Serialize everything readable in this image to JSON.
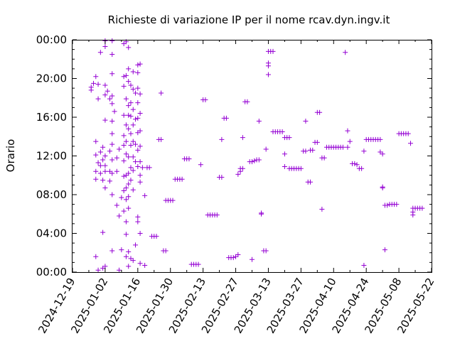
{
  "chart_data": {
    "type": "scatter",
    "title": "Richieste di variazione IP per il nome rcav.dyn.ingv.it",
    "xlabel": "",
    "ylabel": "Orario",
    "x_ticks": [
      "2024-12-19",
      "2025-01-02",
      "2025-01-16",
      "2025-01-30",
      "2025-02-13",
      "2025-02-27",
      "2025-03-13",
      "2025-03-27",
      "2025-04-10",
      "2025-04-24",
      "2025-05-08",
      "2025-05-22"
    ],
    "y_ticks": [
      "00:00",
      "04:00",
      "08:00",
      "12:00",
      "16:00",
      "20:00",
      "00:00"
    ],
    "xlim": [
      "2024-12-19",
      "2025-05-22"
    ],
    "ylim_hours": [
      0,
      24
    ],
    "marker": "+",
    "series_color": "#9400d3",
    "grid": false,
    "points": [
      [
        "2024-12-27",
        19.1
      ],
      [
        "2024-12-27",
        18.8
      ],
      [
        "2024-12-28",
        19.5
      ],
      [
        "2024-12-29",
        20.2
      ],
      [
        "2024-12-29",
        1.6
      ],
      [
        "2024-12-29",
        9.6
      ],
      [
        "2024-12-29",
        10.4
      ],
      [
        "2024-12-29",
        12.1
      ],
      [
        "2024-12-29",
        13.5
      ],
      [
        "2024-12-30",
        11.3
      ],
      [
        "2024-12-30",
        17.9
      ],
      [
        "2024-12-30",
        19.4
      ],
      [
        "2024-12-30",
        0.2
      ],
      [
        "2024-12-31",
        22.7
      ],
      [
        "2024-12-31",
        12.4
      ],
      [
        "2024-12-31",
        11.0
      ],
      [
        "2024-12-31",
        10.2
      ],
      [
        "2025-01-01",
        0.4
      ],
      [
        "2025-01-01",
        11.6
      ],
      [
        "2025-01-01",
        12.9
      ],
      [
        "2025-01-01",
        9.5
      ],
      [
        "2025-01-01",
        4.1
      ],
      [
        "2025-01-02",
        23.3
      ],
      [
        "2025-01-02",
        23.9
      ],
      [
        "2025-01-02",
        19.3
      ],
      [
        "2025-01-02",
        18.3
      ],
      [
        "2025-01-02",
        15.7
      ],
      [
        "2025-01-02",
        12.0
      ],
      [
        "2025-01-02",
        11.0
      ],
      [
        "2025-01-02",
        10.4
      ],
      [
        "2025-01-02",
        8.7
      ],
      [
        "2025-01-02",
        0.6
      ],
      [
        "2025-01-03",
        18.7
      ],
      [
        "2025-01-04",
        17.9
      ],
      [
        "2025-01-04",
        12.5
      ],
      [
        "2025-01-04",
        10.4
      ],
      [
        "2025-01-04",
        9.4
      ],
      [
        "2025-01-05",
        23.9
      ],
      [
        "2025-01-05",
        22.5
      ],
      [
        "2025-01-05",
        20.5
      ],
      [
        "2025-01-05",
        18.2
      ],
      [
        "2025-01-05",
        17.4
      ],
      [
        "2025-01-05",
        15.6
      ],
      [
        "2025-01-05",
        14.3
      ],
      [
        "2025-01-05",
        13.2
      ],
      [
        "2025-01-05",
        11.6
      ],
      [
        "2025-01-05",
        10.2
      ],
      [
        "2025-01-05",
        8.0
      ],
      [
        "2025-01-05",
        2.2
      ],
      [
        "2025-01-06",
        16.6
      ],
      [
        "2025-01-07",
        11.8
      ],
      [
        "2025-01-07",
        10.4
      ],
      [
        "2025-01-07",
        6.9
      ],
      [
        "2025-01-08",
        12.7
      ],
      [
        "2025-01-08",
        5.8
      ],
      [
        "2025-01-08",
        0.2
      ],
      [
        "2025-01-09",
        7.7
      ],
      [
        "2025-01-09",
        2.3
      ],
      [
        "2025-01-10",
        23.6
      ],
      [
        "2025-01-10",
        20.2
      ],
      [
        "2025-01-10",
        19.2
      ],
      [
        "2025-01-10",
        16.2
      ],
      [
        "2025-01-10",
        14.1
      ],
      [
        "2025-01-10",
        13.1
      ],
      [
        "2025-01-10",
        11.5
      ],
      [
        "2025-01-10",
        9.9
      ],
      [
        "2025-01-10",
        8.4
      ],
      [
        "2025-01-10",
        6.3
      ],
      [
        "2025-01-11",
        23.8
      ],
      [
        "2025-01-11",
        20.3
      ],
      [
        "2025-01-11",
        17.9
      ],
      [
        "2025-01-11",
        15.2
      ],
      [
        "2025-01-11",
        13.5
      ],
      [
        "2025-01-11",
        12.2
      ],
      [
        "2025-01-11",
        10.0
      ],
      [
        "2025-01-11",
        8.7
      ],
      [
        "2025-01-11",
        7.5
      ],
      [
        "2025-01-11",
        5.2
      ],
      [
        "2025-01-11",
        3.9
      ],
      [
        "2025-01-11",
        1.6
      ],
      [
        "2025-01-12",
        23.2
      ],
      [
        "2025-01-12",
        21.0
      ],
      [
        "2025-01-12",
        19.7
      ],
      [
        "2025-01-12",
        17.2
      ],
      [
        "2025-01-12",
        16.2
      ],
      [
        "2025-01-12",
        14.8
      ],
      [
        "2025-01-12",
        11.9
      ],
      [
        "2025-01-12",
        10.2
      ],
      [
        "2025-01-12",
        9.1
      ],
      [
        "2025-01-12",
        7.8
      ],
      [
        "2025-01-12",
        6.6
      ],
      [
        "2025-01-12",
        2.1
      ],
      [
        "2025-01-12",
        0.6
      ],
      [
        "2025-01-13",
        19.3
      ],
      [
        "2025-01-13",
        17.5
      ],
      [
        "2025-01-13",
        16.1
      ],
      [
        "2025-01-13",
        14.3
      ],
      [
        "2025-01-13",
        13.1
      ],
      [
        "2025-01-13",
        10.8
      ],
      [
        "2025-01-13",
        9.5
      ],
      [
        "2025-01-13",
        1.4
      ],
      [
        "2025-01-14",
        20.7
      ],
      [
        "2025-01-14",
        18.9
      ],
      [
        "2025-01-14",
        16.8
      ],
      [
        "2025-01-14",
        15.2
      ],
      [
        "2025-01-14",
        13.5
      ],
      [
        "2025-01-14",
        11.9
      ],
      [
        "2025-01-14",
        10.5
      ],
      [
        "2025-01-14",
        8.5
      ],
      [
        "2025-01-14",
        1.2
      ],
      [
        "2025-01-15",
        18.5
      ],
      [
        "2025-01-15",
        15.8
      ],
      [
        "2025-01-15",
        13.2
      ],
      [
        "2025-01-15",
        11.4
      ],
      [
        "2025-01-15",
        2.8
      ],
      [
        "2025-01-16",
        21.4
      ],
      [
        "2025-01-16",
        20.6
      ],
      [
        "2025-01-16",
        19.0
      ],
      [
        "2025-01-16",
        17.5
      ],
      [
        "2025-01-16",
        15.9
      ],
      [
        "2025-01-16",
        14.4
      ],
      [
        "2025-01-16",
        12.6
      ],
      [
        "2025-01-16",
        10.9
      ],
      [
        "2025-01-16",
        5.2
      ],
      [
        "2025-01-16",
        5.7
      ],
      [
        "2025-01-17",
        21.5
      ],
      [
        "2025-01-17",
        18.4
      ],
      [
        "2025-01-17",
        16.4
      ],
      [
        "2025-01-17",
        14.6
      ],
      [
        "2025-01-17",
        13.0
      ],
      [
        "2025-01-17",
        11.4
      ],
      [
        "2025-01-17",
        10.0
      ],
      [
        "2025-01-17",
        9.3
      ],
      [
        "2025-01-17",
        4.0
      ],
      [
        "2025-01-17",
        0.9
      ],
      [
        "2025-01-18",
        10.8
      ],
      [
        "2025-01-19",
        7.9
      ],
      [
        "2025-01-19",
        0.7
      ],
      [
        "2025-01-20",
        10.8
      ],
      [
        "2025-01-21",
        10.8
      ],
      [
        "2025-01-22",
        3.7
      ],
      [
        "2025-01-23",
        3.7
      ],
      [
        "2025-01-24",
        3.7
      ],
      [
        "2025-01-25",
        13.7
      ],
      [
        "2025-01-26",
        13.7
      ],
      [
        "2025-01-26",
        18.5
      ],
      [
        "2025-01-27",
        2.2
      ],
      [
        "2025-01-28",
        2.2
      ],
      [
        "2025-01-28",
        7.4
      ],
      [
        "2025-01-29",
        7.4
      ],
      [
        "2025-01-30",
        7.4
      ],
      [
        "2025-01-31",
        7.4
      ],
      [
        "2025-02-01",
        9.6
      ],
      [
        "2025-02-02",
        9.6
      ],
      [
        "2025-02-03",
        9.6
      ],
      [
        "2025-02-04",
        9.6
      ],
      [
        "2025-02-05",
        11.7
      ],
      [
        "2025-02-06",
        11.7
      ],
      [
        "2025-02-07",
        11.7
      ],
      [
        "2025-02-08",
        0.8
      ],
      [
        "2025-02-09",
        0.8
      ],
      [
        "2025-02-10",
        0.8
      ],
      [
        "2025-02-11",
        0.8
      ],
      [
        "2025-02-12",
        11.1
      ],
      [
        "2025-02-13",
        17.8
      ],
      [
        "2025-02-14",
        17.8
      ],
      [
        "2025-02-15",
        5.9
      ],
      [
        "2025-02-16",
        5.9
      ],
      [
        "2025-02-17",
        5.9
      ],
      [
        "2025-02-18",
        5.9
      ],
      [
        "2025-02-19",
        5.9
      ],
      [
        "2025-02-20",
        9.8
      ],
      [
        "2025-02-21",
        9.8
      ],
      [
        "2025-02-21",
        13.7
      ],
      [
        "2025-02-22",
        15.9
      ],
      [
        "2025-02-23",
        15.9
      ],
      [
        "2025-02-24",
        1.5
      ],
      [
        "2025-02-25",
        1.5
      ],
      [
        "2025-02-26",
        1.5
      ],
      [
        "2025-02-27",
        1.6
      ],
      [
        "2025-02-28",
        1.8
      ],
      [
        "2025-02-28",
        10.1
      ],
      [
        "2025-03-01",
        10.4
      ],
      [
        "2025-03-01",
        10.7
      ],
      [
        "2025-03-02",
        10.7
      ],
      [
        "2025-03-02",
        13.9
      ],
      [
        "2025-03-03",
        17.6
      ],
      [
        "2025-03-04",
        17.6
      ],
      [
        "2025-03-05",
        11.4
      ],
      [
        "2025-03-06",
        11.4
      ],
      [
        "2025-03-06",
        1.3
      ],
      [
        "2025-03-07",
        11.5
      ],
      [
        "2025-03-08",
        11.6
      ],
      [
        "2025-03-09",
        11.6
      ],
      [
        "2025-03-09",
        15.6
      ],
      [
        "2025-03-10",
        6.0
      ],
      [
        "2025-03-10",
        6.1
      ],
      [
        "2025-03-11",
        2.2
      ],
      [
        "2025-03-12",
        2.2
      ],
      [
        "2025-03-12",
        12.7
      ],
      [
        "2025-03-13",
        20.4
      ],
      [
        "2025-03-13",
        21.3
      ],
      [
        "2025-03-13",
        21.6
      ],
      [
        "2025-03-13",
        22.8
      ],
      [
        "2025-03-14",
        22.8
      ],
      [
        "2025-03-15",
        22.8
      ],
      [
        "2025-03-15",
        14.5
      ],
      [
        "2025-03-16",
        14.5
      ],
      [
        "2025-03-17",
        14.5
      ],
      [
        "2025-03-18",
        14.5
      ],
      [
        "2025-03-19",
        14.5
      ],
      [
        "2025-03-20",
        12.2
      ],
      [
        "2025-03-20",
        10.9
      ],
      [
        "2025-03-20",
        13.9
      ],
      [
        "2025-03-21",
        13.9
      ],
      [
        "2025-03-22",
        13.9
      ],
      [
        "2025-03-22",
        10.7
      ],
      [
        "2025-03-23",
        10.7
      ],
      [
        "2025-03-24",
        10.7
      ],
      [
        "2025-03-25",
        10.7
      ],
      [
        "2025-03-26",
        10.7
      ],
      [
        "2025-03-27",
        10.7
      ],
      [
        "2025-03-28",
        12.5
      ],
      [
        "2025-03-29",
        12.5
      ],
      [
        "2025-03-29",
        15.6
      ],
      [
        "2025-03-30",
        9.3
      ],
      [
        "2025-03-31",
        9.3
      ],
      [
        "2025-03-31",
        12.6
      ],
      [
        "2025-04-01",
        12.6
      ],
      [
        "2025-04-02",
        13.4
      ],
      [
        "2025-04-03",
        13.4
      ],
      [
        "2025-04-03",
        16.5
      ],
      [
        "2025-04-04",
        16.5
      ],
      [
        "2025-04-05",
        6.5
      ],
      [
        "2025-04-05",
        11.8
      ],
      [
        "2025-04-06",
        11.8
      ],
      [
        "2025-04-07",
        12.9
      ],
      [
        "2025-04-08",
        12.9
      ],
      [
        "2025-04-09",
        12.9
      ],
      [
        "2025-04-10",
        12.9
      ],
      [
        "2025-04-11",
        12.9
      ],
      [
        "2025-04-12",
        12.9
      ],
      [
        "2025-04-13",
        12.9
      ],
      [
        "2025-04-14",
        12.9
      ],
      [
        "2025-04-15",
        22.7
      ],
      [
        "2025-04-16",
        14.6
      ],
      [
        "2025-04-16",
        12.9
      ],
      [
        "2025-04-17",
        13.5
      ],
      [
        "2025-04-18",
        11.2
      ],
      [
        "2025-04-19",
        11.2
      ],
      [
        "2025-04-20",
        11.1
      ],
      [
        "2025-04-21",
        10.7
      ],
      [
        "2025-04-22",
        10.7
      ],
      [
        "2025-04-23",
        12.5
      ],
      [
        "2025-04-23",
        0.7
      ],
      [
        "2025-04-24",
        13.7
      ],
      [
        "2025-04-25",
        13.7
      ],
      [
        "2025-04-26",
        13.7
      ],
      [
        "2025-04-27",
        13.7
      ],
      [
        "2025-04-28",
        13.7
      ],
      [
        "2025-04-29",
        13.7
      ],
      [
        "2025-04-30",
        13.7
      ],
      [
        "2025-04-30",
        12.4
      ],
      [
        "2025-05-01",
        8.7
      ],
      [
        "2025-05-01",
        8.8
      ],
      [
        "2025-05-01",
        12.2
      ],
      [
        "2025-05-02",
        6.9
      ],
      [
        "2025-05-02",
        2.3
      ],
      [
        "2025-05-03",
        6.9
      ],
      [
        "2025-05-04",
        7.0
      ],
      [
        "2025-05-05",
        7.0
      ],
      [
        "2025-05-06",
        7.0
      ],
      [
        "2025-05-07",
        7.0
      ],
      [
        "2025-05-08",
        14.3
      ],
      [
        "2025-05-09",
        14.3
      ],
      [
        "2025-05-10",
        14.3
      ],
      [
        "2025-05-11",
        14.3
      ],
      [
        "2025-05-12",
        14.3
      ],
      [
        "2025-05-13",
        13.3
      ],
      [
        "2025-05-14",
        6.2
      ],
      [
        "2025-05-14",
        5.9
      ],
      [
        "2025-05-14",
        6.6
      ],
      [
        "2025-05-15",
        6.6
      ],
      [
        "2025-05-16",
        6.6
      ],
      [
        "2025-05-17",
        6.6
      ],
      [
        "2025-05-18",
        6.6
      ]
    ]
  }
}
